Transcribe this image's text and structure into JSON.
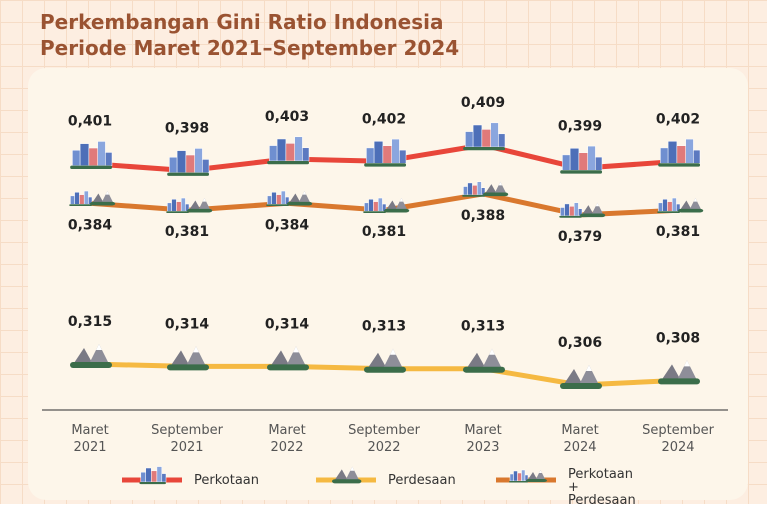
{
  "chart_data": {
    "type": "line",
    "title": "Perkembangan Gini Ratio Indonesia",
    "subtitle": "Periode Maret 2021–September 2024",
    "categories": [
      "Maret 2021",
      "September 2021",
      "Maret 2022",
      "September 2022",
      "Maret 2023",
      "Maret 2024",
      "September 2024"
    ],
    "series": [
      {
        "name": "Perkotaan",
        "color": "#e8463a",
        "values": [
          0.401,
          0.398,
          0.403,
          0.402,
          0.409,
          0.399,
          0.402
        ],
        "value_labels": [
          "0,401",
          "0,398",
          "0,403",
          "0,402",
          "0,409",
          "0,399",
          "0,402"
        ]
      },
      {
        "name": "Perdesaan",
        "color": "#f5b942",
        "values": [
          0.315,
          0.314,
          0.314,
          0.313,
          0.313,
          0.306,
          0.308
        ],
        "value_labels": [
          "0,315",
          "0,314",
          "0,314",
          "0,313",
          "0,313",
          "0,306",
          "0,308"
        ]
      },
      {
        "name": "Perkotaan + Perdesaan",
        "color": "#d9782e",
        "values": [
          0.384,
          0.381,
          0.384,
          0.381,
          0.388,
          0.379,
          0.381
        ],
        "value_labels": [
          "0,384",
          "0,381",
          "0,384",
          "0,381",
          "0,388",
          "0,379",
          "0,381"
        ]
      }
    ]
  }
}
